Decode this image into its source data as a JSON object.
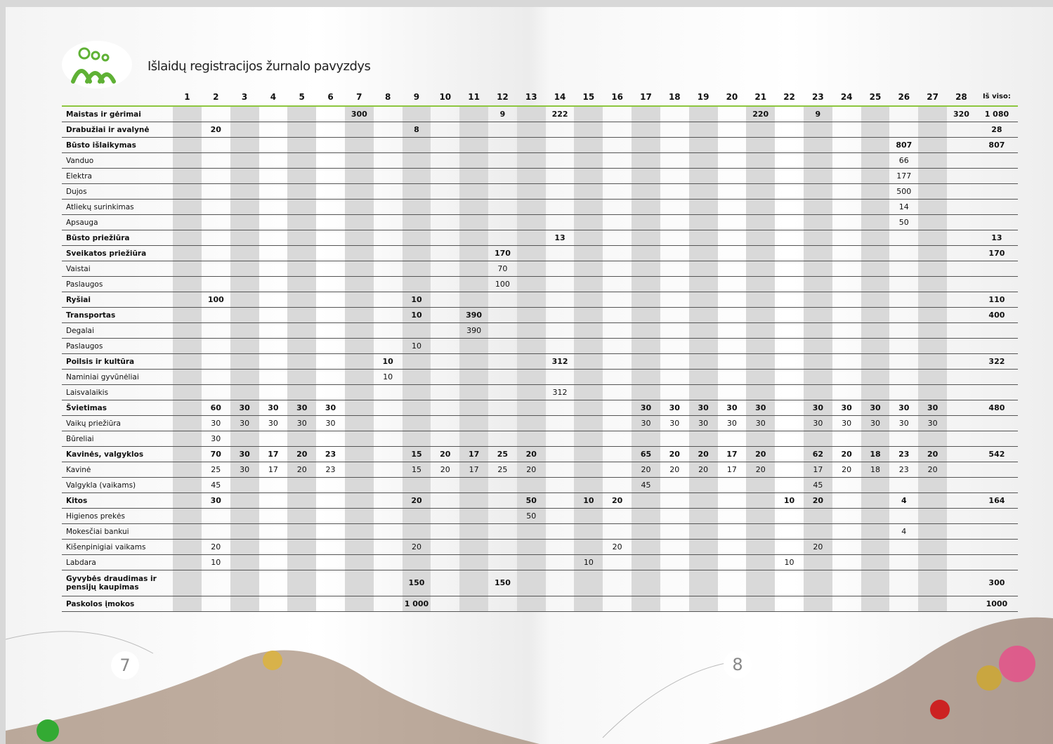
{
  "header": {
    "title": "Išlaidų registracijos žurnalo pavyzdys"
  },
  "page_numbers": [
    "7",
    "8"
  ],
  "table": {
    "columns": [
      "1",
      "2",
      "3",
      "4",
      "5",
      "6",
      "7",
      "8",
      "9",
      "10",
      "11",
      "12",
      "13",
      "14",
      "15",
      "16",
      "17",
      "18",
      "19",
      "20",
      "21",
      "22",
      "23",
      "24",
      "25",
      "26",
      "27",
      "28"
    ],
    "total_header": "Iš viso:",
    "rows": [
      {
        "label": "Maistas ir gėrimai",
        "bold": true,
        "cells": [
          null,
          null,
          null,
          null,
          null,
          null,
          300,
          null,
          null,
          null,
          null,
          9,
          null,
          222,
          null,
          null,
          null,
          null,
          null,
          null,
          220,
          null,
          9,
          null,
          null,
          null,
          null,
          320
        ],
        "total": "1 080"
      },
      {
        "label": "Drabužiai ir avalynė",
        "bold": true,
        "cells": [
          null,
          20,
          null,
          null,
          null,
          null,
          null,
          null,
          8,
          null,
          null,
          null,
          null,
          null,
          null,
          null,
          null,
          null,
          null,
          null,
          null,
          null,
          null,
          null,
          null,
          null,
          null,
          null
        ],
        "total": 28
      },
      {
        "label": "Būsto išlaikymas",
        "bold": true,
        "cells": [
          null,
          null,
          null,
          null,
          null,
          null,
          null,
          null,
          null,
          null,
          null,
          null,
          null,
          null,
          null,
          null,
          null,
          null,
          null,
          null,
          null,
          null,
          null,
          null,
          null,
          807,
          null,
          null
        ],
        "total": 807
      },
      {
        "label": "Vanduo",
        "bold": false,
        "cells": [
          null,
          null,
          null,
          null,
          null,
          null,
          null,
          null,
          null,
          null,
          null,
          null,
          null,
          null,
          null,
          null,
          null,
          null,
          null,
          null,
          null,
          null,
          null,
          null,
          null,
          66,
          null,
          null
        ],
        "total": null
      },
      {
        "label": "Elektra",
        "bold": false,
        "cells": [
          null,
          null,
          null,
          null,
          null,
          null,
          null,
          null,
          null,
          null,
          null,
          null,
          null,
          null,
          null,
          null,
          null,
          null,
          null,
          null,
          null,
          null,
          null,
          null,
          null,
          177,
          null,
          null
        ],
        "total": null
      },
      {
        "label": "Dujos",
        "bold": false,
        "cells": [
          null,
          null,
          null,
          null,
          null,
          null,
          null,
          null,
          null,
          null,
          null,
          null,
          null,
          null,
          null,
          null,
          null,
          null,
          null,
          null,
          null,
          null,
          null,
          null,
          null,
          500,
          null,
          null
        ],
        "total": null
      },
      {
        "label": "Atliekų surinkimas",
        "bold": false,
        "cells": [
          null,
          null,
          null,
          null,
          null,
          null,
          null,
          null,
          null,
          null,
          null,
          null,
          null,
          null,
          null,
          null,
          null,
          null,
          null,
          null,
          null,
          null,
          null,
          null,
          null,
          14,
          null,
          null
        ],
        "total": null
      },
      {
        "label": "Apsauga",
        "bold": false,
        "cells": [
          null,
          null,
          null,
          null,
          null,
          null,
          null,
          null,
          null,
          null,
          null,
          null,
          null,
          null,
          null,
          null,
          null,
          null,
          null,
          null,
          null,
          null,
          null,
          null,
          null,
          50,
          null,
          null
        ],
        "total": null
      },
      {
        "label": "Būsto priežiūra",
        "bold": true,
        "cells": [
          null,
          null,
          null,
          null,
          null,
          null,
          null,
          null,
          null,
          null,
          null,
          null,
          null,
          13,
          null,
          null,
          null,
          null,
          null,
          null,
          null,
          null,
          null,
          null,
          null,
          null,
          null,
          null
        ],
        "total": 13
      },
      {
        "label": "Sveikatos priežiūra",
        "bold": true,
        "cells": [
          null,
          null,
          null,
          null,
          null,
          null,
          null,
          null,
          null,
          null,
          null,
          170,
          null,
          null,
          null,
          null,
          null,
          null,
          null,
          null,
          null,
          null,
          null,
          null,
          null,
          null,
          null,
          null
        ],
        "total": 170
      },
      {
        "label": "Vaistai",
        "bold": false,
        "cells": [
          null,
          null,
          null,
          null,
          null,
          null,
          null,
          null,
          null,
          null,
          null,
          70,
          null,
          null,
          null,
          null,
          null,
          null,
          null,
          null,
          null,
          null,
          null,
          null,
          null,
          null,
          null,
          null
        ],
        "total": null
      },
      {
        "label": "Paslaugos",
        "bold": false,
        "cells": [
          null,
          null,
          null,
          null,
          null,
          null,
          null,
          null,
          null,
          null,
          null,
          100,
          null,
          null,
          null,
          null,
          null,
          null,
          null,
          null,
          null,
          null,
          null,
          null,
          null,
          null,
          null,
          null
        ],
        "total": null
      },
      {
        "label": "Ryšiai",
        "bold": true,
        "cells": [
          null,
          100,
          null,
          null,
          null,
          null,
          null,
          null,
          10,
          null,
          null,
          null,
          null,
          null,
          null,
          null,
          null,
          null,
          null,
          null,
          null,
          null,
          null,
          null,
          null,
          null,
          null,
          null
        ],
        "total": 110
      },
      {
        "label": "Transportas",
        "bold": true,
        "cells": [
          null,
          null,
          null,
          null,
          null,
          null,
          null,
          null,
          10,
          null,
          390,
          null,
          null,
          null,
          null,
          null,
          null,
          null,
          null,
          null,
          null,
          null,
          null,
          null,
          null,
          null,
          null,
          null
        ],
        "total": 400
      },
      {
        "label": "Degalai",
        "bold": false,
        "cells": [
          null,
          null,
          null,
          null,
          null,
          null,
          null,
          null,
          null,
          null,
          390,
          null,
          null,
          null,
          null,
          null,
          null,
          null,
          null,
          null,
          null,
          null,
          null,
          null,
          null,
          null,
          null,
          null
        ],
        "total": null
      },
      {
        "label": "Paslaugos",
        "bold": false,
        "cells": [
          null,
          null,
          null,
          null,
          null,
          null,
          null,
          null,
          10,
          null,
          null,
          null,
          null,
          null,
          null,
          null,
          null,
          null,
          null,
          null,
          null,
          null,
          null,
          null,
          null,
          null,
          null,
          null
        ],
        "total": null
      },
      {
        "label": "Poilsis ir kultūra",
        "bold": true,
        "cells": [
          null,
          null,
          null,
          null,
          null,
          null,
          null,
          10,
          null,
          null,
          null,
          null,
          null,
          312,
          null,
          null,
          null,
          null,
          null,
          null,
          null,
          null,
          null,
          null,
          null,
          null,
          null,
          null
        ],
        "total": 322
      },
      {
        "label": "Naminiai gyvūnėliai",
        "bold": false,
        "cells": [
          null,
          null,
          null,
          null,
          null,
          null,
          null,
          10,
          null,
          null,
          null,
          null,
          null,
          null,
          null,
          null,
          null,
          null,
          null,
          null,
          null,
          null,
          null,
          null,
          null,
          null,
          null,
          null
        ],
        "total": null
      },
      {
        "label": "Laisvalaikis",
        "bold": false,
        "cells": [
          null,
          null,
          null,
          null,
          null,
          null,
          null,
          null,
          null,
          null,
          null,
          null,
          null,
          312,
          null,
          null,
          null,
          null,
          null,
          null,
          null,
          null,
          null,
          null,
          null,
          null,
          null,
          null
        ],
        "total": null
      },
      {
        "label": "Švietimas",
        "bold": true,
        "cells": [
          null,
          60,
          30,
          30,
          30,
          30,
          null,
          null,
          null,
          null,
          null,
          null,
          null,
          null,
          null,
          null,
          30,
          30,
          30,
          30,
          30,
          null,
          30,
          30,
          30,
          30,
          30,
          null
        ],
        "total": 480
      },
      {
        "label": "Vaikų priežiūra",
        "bold": false,
        "cells": [
          null,
          30,
          30,
          30,
          30,
          30,
          null,
          null,
          null,
          null,
          null,
          null,
          null,
          null,
          null,
          null,
          30,
          30,
          30,
          30,
          30,
          null,
          30,
          30,
          30,
          30,
          30,
          null
        ],
        "total": null
      },
      {
        "label": "Būreliai",
        "bold": false,
        "cells": [
          null,
          30,
          null,
          null,
          null,
          null,
          null,
          null,
          null,
          null,
          null,
          null,
          null,
          null,
          null,
          null,
          null,
          null,
          null,
          null,
          null,
          null,
          null,
          null,
          null,
          null,
          null,
          null
        ],
        "total": null
      },
      {
        "label": "Kavinės, valgyklos",
        "bold": true,
        "cells": [
          null,
          70,
          30,
          17,
          20,
          23,
          null,
          null,
          15,
          20,
          17,
          25,
          20,
          null,
          null,
          null,
          65,
          20,
          20,
          17,
          20,
          null,
          62,
          20,
          18,
          23,
          20,
          null
        ],
        "total": 542
      },
      {
        "label": "Kavinė",
        "bold": false,
        "cells": [
          null,
          25,
          30,
          17,
          20,
          23,
          null,
          null,
          15,
          20,
          17,
          25,
          20,
          null,
          null,
          null,
          20,
          20,
          20,
          17,
          20,
          null,
          17,
          20,
          18,
          23,
          20,
          null
        ],
        "total": null
      },
      {
        "label": "Valgykla (vaikams)",
        "bold": false,
        "cells": [
          null,
          45,
          null,
          null,
          null,
          null,
          null,
          null,
          null,
          null,
          null,
          null,
          null,
          null,
          null,
          null,
          45,
          null,
          null,
          null,
          null,
          null,
          45,
          null,
          null,
          null,
          null,
          null
        ],
        "total": null
      },
      {
        "label": "Kitos",
        "bold": true,
        "cells": [
          null,
          30,
          null,
          null,
          null,
          null,
          null,
          null,
          20,
          null,
          null,
          null,
          50,
          null,
          10,
          20,
          null,
          null,
          null,
          null,
          null,
          10,
          20,
          null,
          null,
          4,
          null,
          null
        ],
        "total": 164
      },
      {
        "label": "Higienos prekės",
        "bold": false,
        "cells": [
          null,
          null,
          null,
          null,
          null,
          null,
          null,
          null,
          null,
          null,
          null,
          null,
          50,
          null,
          null,
          null,
          null,
          null,
          null,
          null,
          null,
          null,
          null,
          null,
          null,
          null,
          null,
          null
        ],
        "total": null
      },
      {
        "label": "Mokesčiai bankui",
        "bold": false,
        "cells": [
          null,
          null,
          null,
          null,
          null,
          null,
          null,
          null,
          null,
          null,
          null,
          null,
          null,
          null,
          null,
          null,
          null,
          null,
          null,
          null,
          null,
          null,
          null,
          null,
          null,
          4,
          null,
          null
        ],
        "total": null
      },
      {
        "label": "Kišenpinigiai vaikams",
        "bold": false,
        "cells": [
          null,
          20,
          null,
          null,
          null,
          null,
          null,
          null,
          20,
          null,
          null,
          null,
          null,
          null,
          null,
          20,
          null,
          null,
          null,
          null,
          null,
          null,
          20,
          null,
          null,
          null,
          null,
          null
        ],
        "total": null
      },
      {
        "label": "Labdara",
        "bold": false,
        "cells": [
          null,
          10,
          null,
          null,
          null,
          null,
          null,
          null,
          null,
          null,
          null,
          null,
          null,
          null,
          10,
          null,
          null,
          null,
          null,
          null,
          null,
          10,
          null,
          null,
          null,
          null,
          null,
          null
        ],
        "total": null
      },
      {
        "label": "Gyvybės draudimas ir pensijų kaupimas",
        "bold": true,
        "cells": [
          null,
          null,
          null,
          null,
          null,
          null,
          null,
          null,
          150,
          null,
          null,
          150,
          null,
          null,
          null,
          null,
          null,
          null,
          null,
          null,
          null,
          null,
          null,
          null,
          null,
          null,
          null,
          null
        ],
        "total": 300
      },
      {
        "label": "Paskolos įmokos",
        "bold": true,
        "cells": [
          null,
          null,
          null,
          null,
          null,
          null,
          null,
          null,
          "1 000",
          null,
          null,
          null,
          null,
          null,
          null,
          null,
          null,
          null,
          null,
          null,
          null,
          null,
          null,
          null,
          null,
          null,
          null,
          null
        ],
        "total": "1000"
      }
    ]
  }
}
